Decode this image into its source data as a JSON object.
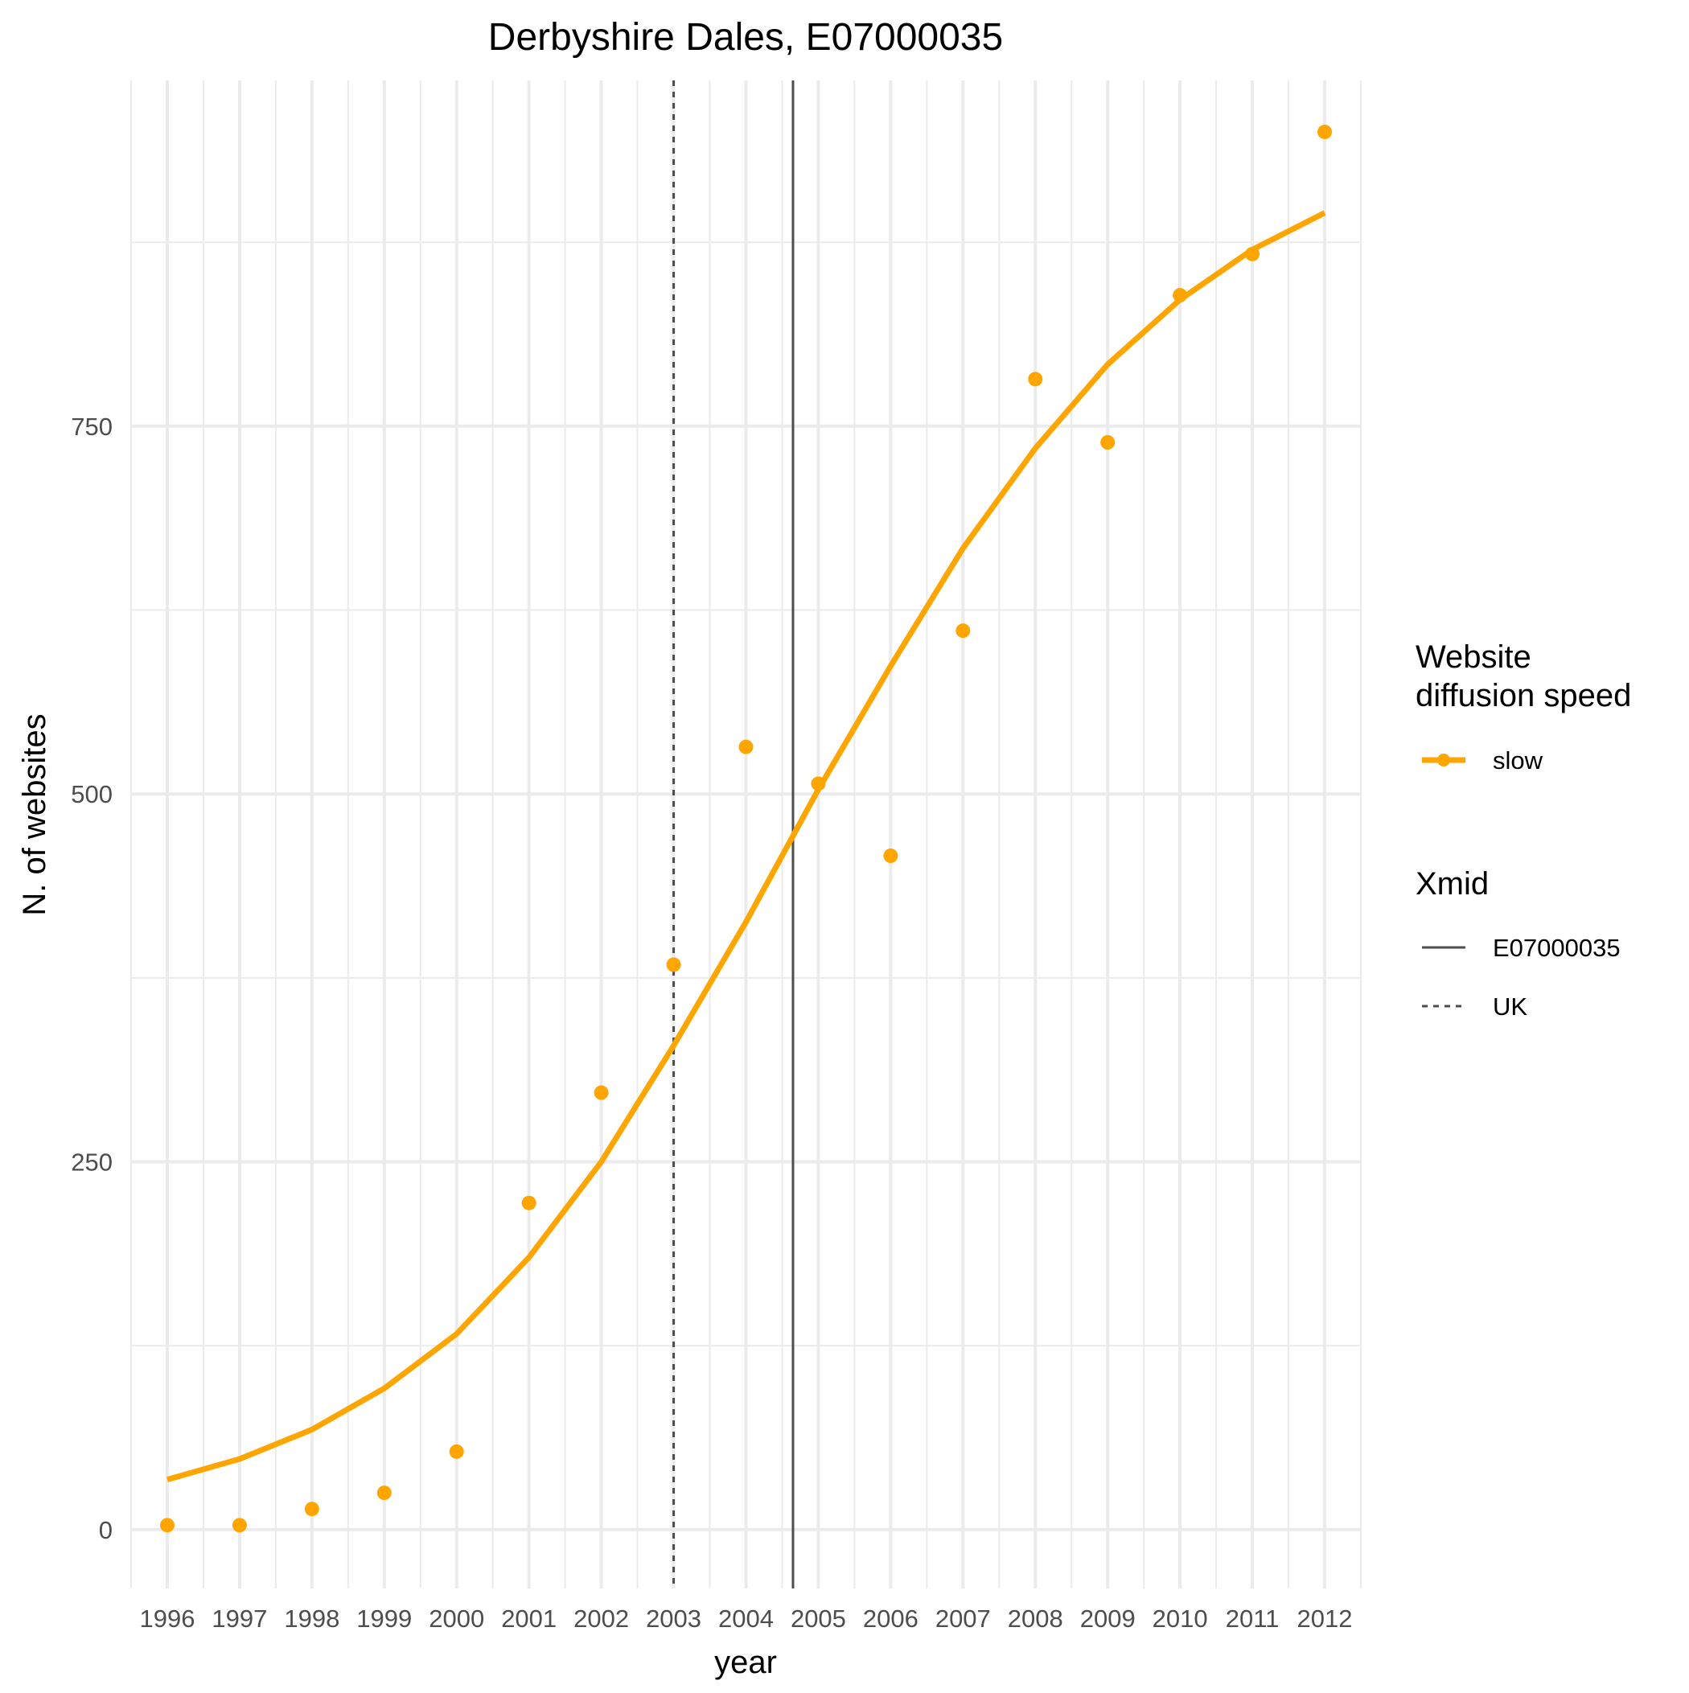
{
  "chart_data": {
    "type": "line",
    "title": "Derbyshire Dales, E07000035",
    "xlabel": "year",
    "ylabel": "N. of websites",
    "x": [
      1996,
      1997,
      1998,
      1999,
      2000,
      2001,
      2002,
      2003,
      2004,
      2005,
      2006,
      2007,
      2008,
      2009,
      2010,
      2011,
      2012
    ],
    "xlim": [
      1995.5,
      2012.5
    ],
    "ylim": [
      -40,
      985
    ],
    "y_ticks": [
      0,
      250,
      500,
      750
    ],
    "y_tick_labels": [
      "0",
      "250",
      "500",
      "750"
    ],
    "x_tick_labels": [
      "1996",
      "1997",
      "1998",
      "1999",
      "2000",
      "2001",
      "2002",
      "2003",
      "2004",
      "2005",
      "2006",
      "2007",
      "2008",
      "2009",
      "2010",
      "2011",
      "2012"
    ],
    "grid": true,
    "legend_position": "right",
    "series": [
      {
        "name": "slow",
        "color": "#FFA500",
        "points": [
          3,
          3,
          14,
          25,
          53,
          222,
          297,
          384,
          532,
          507,
          458,
          611,
          782,
          739,
          839,
          867,
          950
        ],
        "fitted": [
          34,
          48,
          68,
          96,
          133,
          185,
          250,
          329,
          413,
          503,
          587,
          667,
          735,
          792,
          836,
          870,
          895
        ]
      }
    ],
    "reference_lines": [
      {
        "name": "E07000035",
        "x": 2004.65,
        "style": "solid",
        "color": "#4d4d4d"
      },
      {
        "name": "UK",
        "x": 2003.0,
        "style": "dashed",
        "color": "#4d4d4d"
      }
    ],
    "legend": {
      "speed_title_line1": "Website",
      "speed_title_line2": "diffusion speed",
      "speed_item": "slow",
      "xmid_title": "Xmid",
      "xmid_items": [
        "E07000035",
        "UK"
      ]
    }
  }
}
